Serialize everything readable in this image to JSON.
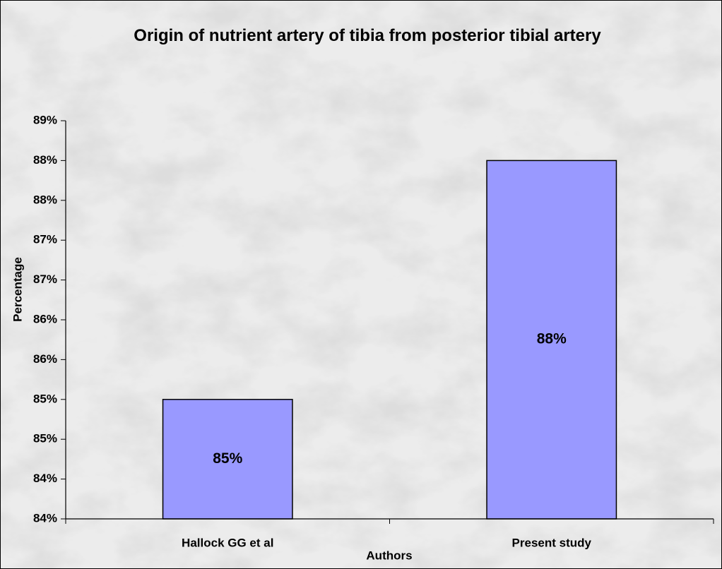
{
  "chart_data": {
    "type": "bar",
    "title": "Origin of nutrient artery of tibia from posterior tibial artery",
    "x_label": "Authors",
    "y_label": "Percentage",
    "categories": [
      "Hallock GG  et al",
      "Present study"
    ],
    "values": [
      85,
      88
    ],
    "value_labels": [
      "85%",
      "88%"
    ],
    "color": "#9999ff",
    "ylim": [
      83.5,
      88.5
    ],
    "yticks": [
      {
        "value": 83.5,
        "label": "84%"
      },
      {
        "value": 84,
        "label": "84%"
      },
      {
        "value": 84.5,
        "label": "85%"
      },
      {
        "value": 85,
        "label": "85%"
      },
      {
        "value": 85.5,
        "label": "86%"
      },
      {
        "value": 86,
        "label": "86%"
      },
      {
        "value": 86.5,
        "label": "87%"
      },
      {
        "value": 87,
        "label": "87%"
      },
      {
        "value": 87.5,
        "label": "88%"
      },
      {
        "value": 88,
        "label": "88%"
      },
      {
        "value": 88.5,
        "label": "89%"
      }
    ],
    "grid": false
  }
}
